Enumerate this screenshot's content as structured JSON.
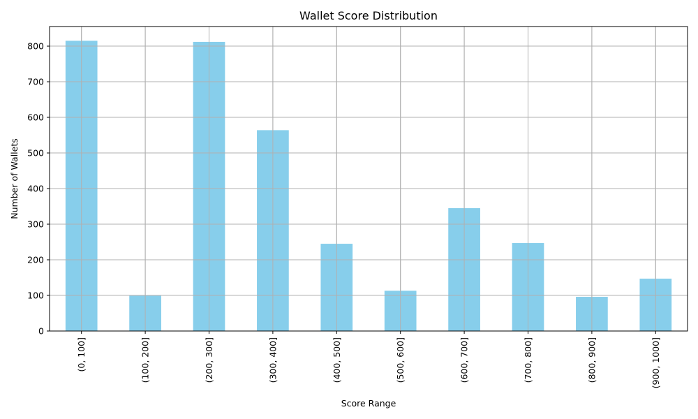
{
  "chart_data": {
    "type": "bar",
    "title": "Wallet Score Distribution",
    "xlabel": "Score Range",
    "ylabel": "Number of Wallets",
    "categories": [
      "(0, 100]",
      "(100, 200]",
      "(200, 300]",
      "(300, 400]",
      "(400, 500]",
      "(500, 600]",
      "(600, 700]",
      "(700, 800]",
      "(800, 900]",
      "(900, 1000]"
    ],
    "values": [
      815,
      100,
      812,
      564,
      245,
      113,
      345,
      247,
      96,
      147
    ],
    "ylim": [
      0,
      855
    ],
    "yticks": [
      0,
      100,
      200,
      300,
      400,
      500,
      600,
      700,
      800
    ],
    "grid": true,
    "bar_color": "#87ceeb"
  }
}
